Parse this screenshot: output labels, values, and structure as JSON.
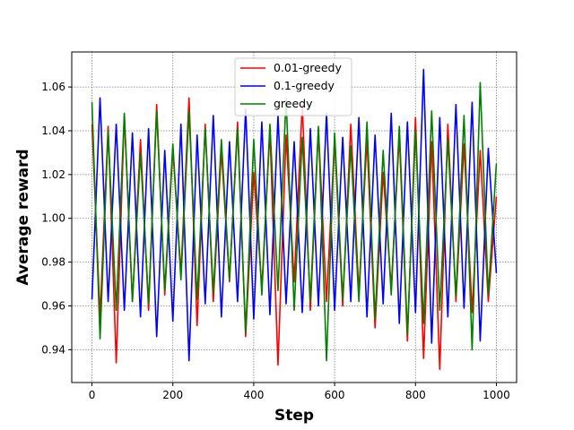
{
  "chart_data": {
    "type": "line",
    "title": "",
    "xlabel": "Step",
    "ylabel": "Average reward",
    "xlim": [
      -50,
      1050
    ],
    "ylim": [
      0.925,
      1.076
    ],
    "xticks": [
      0,
      200,
      400,
      600,
      800,
      1000
    ],
    "yticks": [
      0.94,
      0.96,
      0.98,
      1.0,
      1.02,
      1.04,
      1.06
    ],
    "ytick_labels": [
      "0.94",
      "0.96",
      "0.98",
      "1.00",
      "1.02",
      "1.04",
      "1.06"
    ],
    "grid": true,
    "legend_position": "top-center",
    "series": [
      {
        "name": "0.01-greedy",
        "color": "#ff0000",
        "x": [
          0,
          20,
          40,
          60,
          80,
          100,
          120,
          140,
          160,
          180,
          200,
          220,
          240,
          260,
          280,
          300,
          320,
          340,
          360,
          380,
          400,
          420,
          440,
          460,
          480,
          500,
          520,
          540,
          560,
          580,
          600,
          620,
          640,
          660,
          680,
          700,
          720,
          740,
          760,
          780,
          800,
          820,
          840,
          860,
          880,
          900,
          920,
          940,
          960,
          980,
          1000
        ],
        "values": [
          1.043,
          0.955,
          1.042,
          0.934,
          1.047,
          0.962,
          1.036,
          0.958,
          1.052,
          0.965,
          1.032,
          0.975,
          1.055,
          0.951,
          1.043,
          0.962,
          1.031,
          0.971,
          1.044,
          0.946,
          1.021,
          0.968,
          1.04,
          0.933,
          1.038,
          0.971,
          1.052,
          0.958,
          1.041,
          0.962,
          1.036,
          0.96,
          1.043,
          0.966,
          1.036,
          0.95,
          1.021,
          0.968,
          1.038,
          0.944,
          1.046,
          0.936,
          1.035,
          0.931,
          1.043,
          0.962,
          1.034,
          0.957,
          1.031,
          0.962,
          1.01
        ]
      },
      {
        "name": "0.1-greedy",
        "color": "#0000ff",
        "x": [
          0,
          20,
          40,
          60,
          80,
          100,
          120,
          140,
          160,
          180,
          200,
          220,
          240,
          260,
          280,
          300,
          320,
          340,
          360,
          380,
          400,
          420,
          440,
          460,
          480,
          500,
          520,
          540,
          560,
          580,
          600,
          620,
          640,
          660,
          680,
          700,
          720,
          740,
          760,
          780,
          800,
          820,
          840,
          860,
          880,
          900,
          920,
          940,
          960,
          980,
          1000
        ],
        "values": [
          0.963,
          1.055,
          0.962,
          1.043,
          0.958,
          1.039,
          0.955,
          1.041,
          0.946,
          1.031,
          0.953,
          1.043,
          0.935,
          1.038,
          0.961,
          1.047,
          0.955,
          1.035,
          0.962,
          1.05,
          0.954,
          1.044,
          0.956,
          1.047,
          0.961,
          1.035,
          0.957,
          1.041,
          0.96,
          1.048,
          0.958,
          1.037,
          0.962,
          1.046,
          0.955,
          1.038,
          0.961,
          1.048,
          0.952,
          1.044,
          0.957,
          1.068,
          0.943,
          1.046,
          0.955,
          1.052,
          0.959,
          1.053,
          0.944,
          1.032,
          0.975
        ]
      },
      {
        "name": "greedy",
        "color": "#008000",
        "x": [
          0,
          20,
          40,
          60,
          80,
          100,
          120,
          140,
          160,
          180,
          200,
          220,
          240,
          260,
          280,
          300,
          320,
          340,
          360,
          380,
          400,
          420,
          440,
          460,
          480,
          500,
          520,
          540,
          560,
          580,
          600,
          620,
          640,
          660,
          680,
          700,
          720,
          740,
          760,
          780,
          800,
          820,
          840,
          860,
          880,
          900,
          920,
          940,
          960,
          980,
          1000
        ],
        "values": [
          1.053,
          0.945,
          1.04,
          0.958,
          1.048,
          0.962,
          1.03,
          0.961,
          1.049,
          0.967,
          1.034,
          0.972,
          1.049,
          0.963,
          1.041,
          0.966,
          1.036,
          0.972,
          1.041,
          0.948,
          1.036,
          0.965,
          1.043,
          0.967,
          1.055,
          0.958,
          1.037,
          0.962,
          1.042,
          0.935,
          1.039,
          0.963,
          1.033,
          0.962,
          1.044,
          0.954,
          1.031,
          0.965,
          1.042,
          0.947,
          1.04,
          0.952,
          1.049,
          0.958,
          1.036,
          0.964,
          1.047,
          0.94,
          1.062,
          0.965,
          1.025
        ]
      }
    ]
  }
}
